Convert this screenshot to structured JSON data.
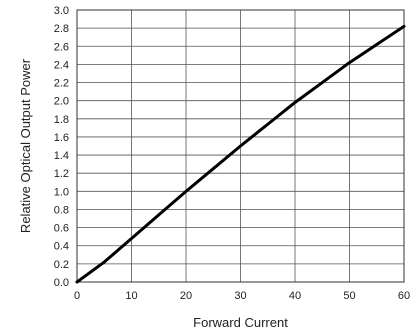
{
  "chart_data": {
    "type": "line",
    "title": "",
    "xlabel": "Forward Current",
    "ylabel": "Relative Optical Output Power",
    "xlim": [
      0,
      60
    ],
    "ylim": [
      0,
      3.0
    ],
    "x_ticks": [
      "0",
      "10",
      "20",
      "30",
      "40",
      "50",
      "60"
    ],
    "y_ticks": [
      "0.0",
      "0.2",
      "0.4",
      "0.6",
      "0.8",
      "1.0",
      "1.2",
      "1.4",
      "1.6",
      "1.8",
      "2.0",
      "2.2",
      "2.4",
      "2.6",
      "2.8",
      "3.0"
    ],
    "grid": true,
    "series": [
      {
        "color": "#000000",
        "x": [
          0,
          5,
          10,
          15,
          20,
          25,
          30,
          35,
          40,
          45,
          50,
          55,
          60
        ],
        "y": [
          0,
          0.22,
          0.48,
          0.74,
          1.0,
          1.25,
          1.5,
          1.74,
          1.98,
          2.2,
          2.42,
          2.62,
          2.82
        ]
      }
    ]
  }
}
